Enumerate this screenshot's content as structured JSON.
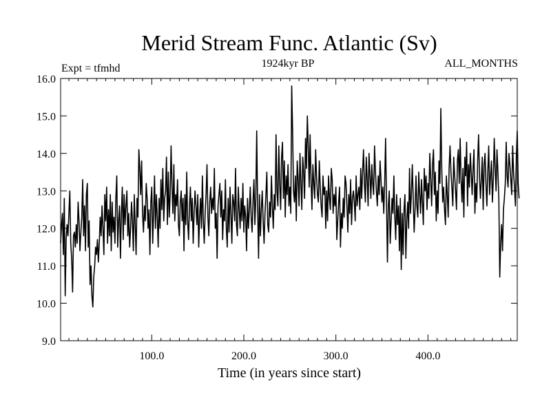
{
  "chart_data": {
    "type": "line",
    "title": "Merid Stream Func. Atlantic (Sv)",
    "subtitle_left": "Expt = tfmhd",
    "subtitle_center": "1924kyr BP",
    "subtitle_right": "ALL_MONTHS",
    "xlabel": "Time (in years since start)",
    "ylabel": "",
    "xlim": [
      1,
      497
    ],
    "ylim": [
      9.0,
      16.0
    ],
    "x_ticks": [
      100,
      200,
      300,
      400
    ],
    "x_tick_labels": [
      "100.0",
      "200.0",
      "300.0",
      "400.0"
    ],
    "y_ticks": [
      9,
      10,
      11,
      12,
      13,
      14,
      15,
      16
    ],
    "y_tick_labels": [
      "9.0",
      "10.0",
      "11.0",
      "12.0",
      "13.0",
      "14.0",
      "15.0",
      "16.0"
    ],
    "grid": false,
    "line_color": "#000000",
    "series": [
      {
        "name": "Merid Stream Func",
        "x_start": 1,
        "x_step": 1,
        "values": [
          11.6,
          12.1,
          12.4,
          11.3,
          12.8,
          10.2,
          11.7,
          12.1,
          11.8,
          12.4,
          13.0,
          11.6,
          11.2,
          10.3,
          11.8,
          11.9,
          11.5,
          12.1,
          11.6,
          12.7,
          12.2,
          11.4,
          11.9,
          12.3,
          13.3,
          11.8,
          12.6,
          11.4,
          12.9,
          13.2,
          11.5,
          12.2,
          10.5,
          11.0,
          10.2,
          9.9,
          10.7,
          11.0,
          11.5,
          11.3,
          11.7,
          11.1,
          11.6,
          12.3,
          11.8,
          12.6,
          12.0,
          11.3,
          12.9,
          12.2,
          13.1,
          11.6,
          12.5,
          11.8,
          12.9,
          11.4,
          12.7,
          11.9,
          12.3,
          11.6,
          12.8,
          13.4,
          11.5,
          12.2,
          12.6,
          11.2,
          12.4,
          13.1,
          11.7,
          12.9,
          12.1,
          12.6,
          13.0,
          11.8,
          12.4,
          11.5,
          12.0,
          12.7,
          12.2,
          11.4,
          12.9,
          12.1,
          11.3,
          12.8,
          12.3,
          14.1,
          13.6,
          12.9,
          13.8,
          12.4,
          11.9,
          12.6,
          12.2,
          13.2,
          12.8,
          12.0,
          12.5,
          11.3,
          12.7,
          13.1,
          11.6,
          12.4,
          13.4,
          12.0,
          12.9,
          12.3,
          11.5,
          12.8,
          12.0,
          13.3,
          12.5,
          13.6,
          12.2,
          12.8,
          13.0,
          13.9,
          12.1,
          13.5,
          12.3,
          12.9,
          14.2,
          13.1,
          12.4,
          13.7,
          12.2,
          12.9,
          12.6,
          13.3,
          12.1,
          11.8,
          12.7,
          13.0,
          12.2,
          12.8,
          11.4,
          12.9,
          12.1,
          13.5,
          12.2,
          11.7,
          12.6,
          13.1,
          12.2,
          12.8,
          11.6,
          12.4,
          13.0,
          12.6,
          12.1,
          12.9,
          11.5,
          12.3,
          12.8,
          12.0,
          13.4,
          12.2,
          11.6,
          12.4,
          12.9,
          13.7,
          12.3,
          11.8,
          12.7,
          13.1,
          12.4,
          12.8,
          12.5,
          13.6,
          12.0,
          12.4,
          11.2,
          12.6,
          12.9,
          13.2,
          12.3,
          13.0,
          11.7,
          12.5,
          12.2,
          13.3,
          12.0,
          11.5,
          12.8,
          11.9,
          13.1,
          12.4,
          11.6,
          12.9,
          12.7,
          12.2,
          13.6,
          12.1,
          11.8,
          13.1,
          12.5,
          12.0,
          12.8,
          12.2,
          13.2,
          11.9,
          12.6,
          12.3,
          11.4,
          12.8,
          12.0,
          12.5,
          13.1,
          12.3,
          11.9,
          12.7,
          13.3,
          12.1,
          12.8,
          14.6,
          12.6,
          11.2,
          12.9,
          11.8,
          12.5,
          13.0,
          12.2,
          11.6,
          12.4,
          12.9,
          13.5,
          12.1,
          11.9,
          12.7,
          12.3,
          13.4,
          12.6,
          12.0,
          12.9,
          12.5,
          14.5,
          13.0,
          12.6,
          14.2,
          13.2,
          12.5,
          13.9,
          14.3,
          12.8,
          13.8,
          12.3,
          13.4,
          12.9,
          13.7,
          12.6,
          13.1,
          12.4,
          15.8,
          14.6,
          13.0,
          12.7,
          13.4,
          12.2,
          13.8,
          13.3,
          12.6,
          14.0,
          13.2,
          12.5,
          13.9,
          13.5,
          12.8,
          14.4,
          13.6,
          15.0,
          14.2,
          13.1,
          14.5,
          13.3,
          12.5,
          13.7,
          13.2,
          12.8,
          14.1,
          13.4,
          12.9,
          12.7,
          13.8,
          13.1,
          12.6,
          12.3,
          13.4,
          12.9,
          13.1,
          12.0,
          13.0,
          12.2,
          13.4,
          12.8,
          12.5,
          13.6,
          13.3,
          12.4,
          12.9,
          12.6,
          13.1,
          11.7,
          12.2,
          12.7,
          13.1,
          11.5,
          12.4,
          12.0,
          12.8,
          12.3,
          13.4,
          13.2,
          12.6,
          11.9,
          12.9,
          12.4,
          13.3,
          12.1,
          12.8,
          13.0,
          12.7,
          12.2,
          13.4,
          12.6,
          12.9,
          13.1,
          12.5,
          13.6,
          12.8,
          13.5,
          14.1,
          13.2,
          12.7,
          13.9,
          13.3,
          12.6,
          14.0,
          13.4,
          12.8,
          13.7,
          13.2,
          12.9,
          14.2,
          13.5,
          13.0,
          12.6,
          13.4,
          12.9,
          13.8,
          13.3,
          12.7,
          13.1,
          12.4,
          13.2,
          14.4,
          12.7,
          11.1,
          12.6,
          13.0,
          11.6,
          12.2,
          12.8,
          12.4,
          13.4,
          12.3,
          11.7,
          12.9,
          12.1,
          12.6,
          11.4,
          12.8,
          10.9,
          12.4,
          11.3,
          12.5,
          12.9,
          11.2,
          12.2,
          12.7,
          12.0,
          13.6,
          12.4,
          12.9,
          13.7,
          12.8,
          11.9,
          12.5,
          13.4,
          12.6,
          12.3,
          13.5,
          12.9,
          12.4,
          13.3,
          12.7,
          12.1,
          13.6,
          13.0,
          13.4,
          12.5,
          13.2,
          12.8,
          14.0,
          13.3,
          12.6,
          13.7,
          14.1,
          12.9,
          13.5,
          12.2,
          13.0,
          12.4,
          13.8,
          13.2,
          15.2,
          13.6,
          12.7,
          13.1,
          12.5,
          12.1,
          13.4,
          12.9,
          12.3,
          13.6,
          14.2,
          13.5,
          13.1,
          12.6,
          13.9,
          13.4,
          13.0,
          12.5,
          13.8,
          14.1,
          13.2,
          14.4,
          13.3,
          12.7,
          13.6,
          12.3,
          13.9,
          13.4,
          14.3,
          12.6,
          13.7,
          13.1,
          14.0,
          13.5,
          12.9,
          13.6,
          14.1,
          12.4,
          13.2,
          12.7,
          13.8,
          14.5,
          13.4,
          12.8,
          13.3,
          13.9,
          12.5,
          13.7,
          14.0,
          13.2,
          12.6,
          13.5,
          14.2,
          12.9,
          13.4,
          13.8,
          12.7,
          13.3,
          14.4,
          13.6,
          13.0,
          14.1,
          13.5,
          12.8,
          10.7,
          11.6,
          12.1,
          11.4,
          12.5,
          12.8,
          13.2,
          14.3,
          13.4,
          13.1,
          14.0,
          13.7,
          13.3,
          12.9,
          14.2,
          13.5,
          13.1,
          12.6,
          13.9,
          14.6,
          13.2,
          12.8
        ]
      }
    ]
  }
}
